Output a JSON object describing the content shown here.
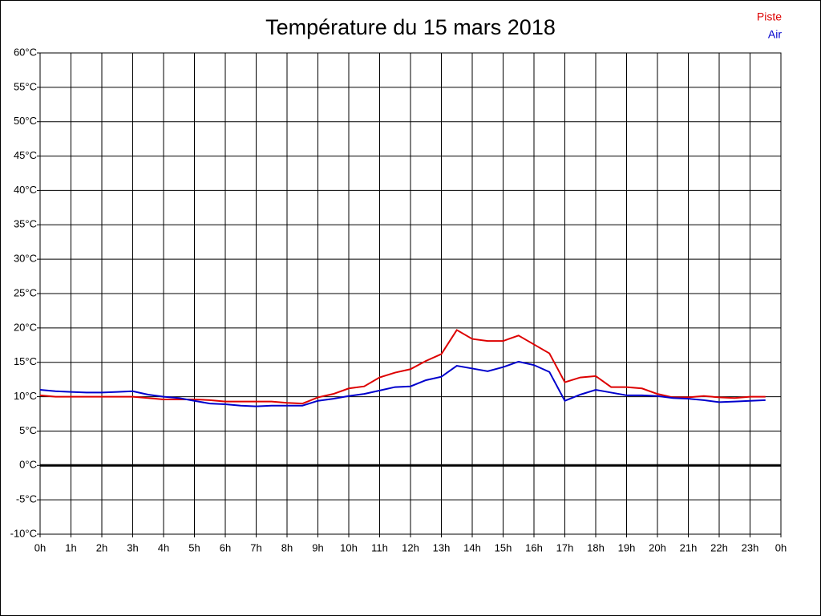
{
  "chart_data": {
    "type": "line",
    "title": "Température du 15 mars 2018",
    "x": [
      0,
      0.5,
      1,
      1.5,
      2,
      2.5,
      3,
      3.5,
      4,
      4.5,
      5,
      5.5,
      6,
      6.5,
      7,
      7.5,
      8,
      8.5,
      9,
      9.5,
      10,
      10.5,
      11,
      11.5,
      12,
      12.5,
      13,
      13.5,
      14,
      14.5,
      15,
      15.5,
      16,
      16.5,
      17,
      17.5,
      18,
      18.5,
      19,
      19.5,
      20,
      20.5,
      21,
      21.5,
      22,
      22.5,
      23,
      23.5
    ],
    "series": [
      {
        "name": "Piste",
        "color": "#dd0000",
        "values": [
          10.2,
          10.0,
          10.0,
          10.0,
          10.0,
          10.0,
          10.0,
          9.8,
          9.6,
          9.6,
          9.6,
          9.5,
          9.3,
          9.3,
          9.3,
          9.3,
          9.1,
          9.0,
          9.9,
          10.4,
          11.2,
          11.5,
          12.8,
          13.5,
          14.0,
          15.2,
          16.2,
          19.7,
          18.4,
          18.1,
          18.1,
          18.9,
          17.6,
          16.3,
          12.1,
          12.8,
          13.0,
          11.4,
          11.4,
          11.2,
          10.4,
          9.9,
          9.9,
          10.1,
          9.9,
          9.8,
          10.0,
          10.0
        ]
      },
      {
        "name": "Air",
        "color": "#0000cc",
        "values": [
          11.0,
          10.8,
          10.7,
          10.6,
          10.6,
          10.7,
          10.8,
          10.3,
          10.0,
          9.8,
          9.4,
          9.0,
          8.9,
          8.7,
          8.6,
          8.7,
          8.7,
          8.7,
          9.4,
          9.7,
          10.1,
          10.4,
          10.9,
          11.4,
          11.5,
          12.4,
          12.9,
          14.5,
          14.1,
          13.7,
          14.3,
          15.1,
          14.6,
          13.6,
          9.4,
          10.3,
          11.0,
          10.6,
          10.2,
          10.2,
          10.1,
          9.8,
          9.7,
          9.5,
          9.2,
          9.3,
          9.4,
          9.5
        ]
      }
    ],
    "xlim": [
      0,
      24
    ],
    "xticks": [
      {
        "value": 0,
        "label": "0h"
      },
      {
        "value": 1,
        "label": "1h"
      },
      {
        "value": 2,
        "label": "2h"
      },
      {
        "value": 3,
        "label": "3h"
      },
      {
        "value": 4,
        "label": "4h"
      },
      {
        "value": 5,
        "label": "5h"
      },
      {
        "value": 6,
        "label": "6h"
      },
      {
        "value": 7,
        "label": "7h"
      },
      {
        "value": 8,
        "label": "8h"
      },
      {
        "value": 9,
        "label": "9h"
      },
      {
        "value": 10,
        "label": "10h"
      },
      {
        "value": 11,
        "label": "11h"
      },
      {
        "value": 12,
        "label": "12h"
      },
      {
        "value": 13,
        "label": "13h"
      },
      {
        "value": 14,
        "label": "14h"
      },
      {
        "value": 15,
        "label": "15h"
      },
      {
        "value": 16,
        "label": "16h"
      },
      {
        "value": 17,
        "label": "17h"
      },
      {
        "value": 18,
        "label": "18h"
      },
      {
        "value": 19,
        "label": "19h"
      },
      {
        "value": 20,
        "label": "20h"
      },
      {
        "value": 21,
        "label": "21h"
      },
      {
        "value": 22,
        "label": "22h"
      },
      {
        "value": 23,
        "label": "23h"
      },
      {
        "value": 24,
        "label": "0h"
      }
    ],
    "ylim": [
      -10,
      60
    ],
    "yticks": [
      {
        "value": -10,
        "label": "-10°C"
      },
      {
        "value": -5,
        "label": "-5°C"
      },
      {
        "value": 0,
        "label": "0°C"
      },
      {
        "value": 5,
        "label": "5°C"
      },
      {
        "value": 10,
        "label": "10°C"
      },
      {
        "value": 15,
        "label": "15°C"
      },
      {
        "value": 20,
        "label": "20°C"
      },
      {
        "value": 25,
        "label": "25°C"
      },
      {
        "value": 30,
        "label": "30°C"
      },
      {
        "value": 35,
        "label": "35°C"
      },
      {
        "value": 40,
        "label": "40°C"
      },
      {
        "value": 45,
        "label": "45°C"
      },
      {
        "value": 50,
        "label": "50°C"
      },
      {
        "value": 55,
        "label": "55°C"
      },
      {
        "value": 60,
        "label": "60°C"
      }
    ],
    "grid": true,
    "zero_line": true,
    "legend": "top-right"
  }
}
